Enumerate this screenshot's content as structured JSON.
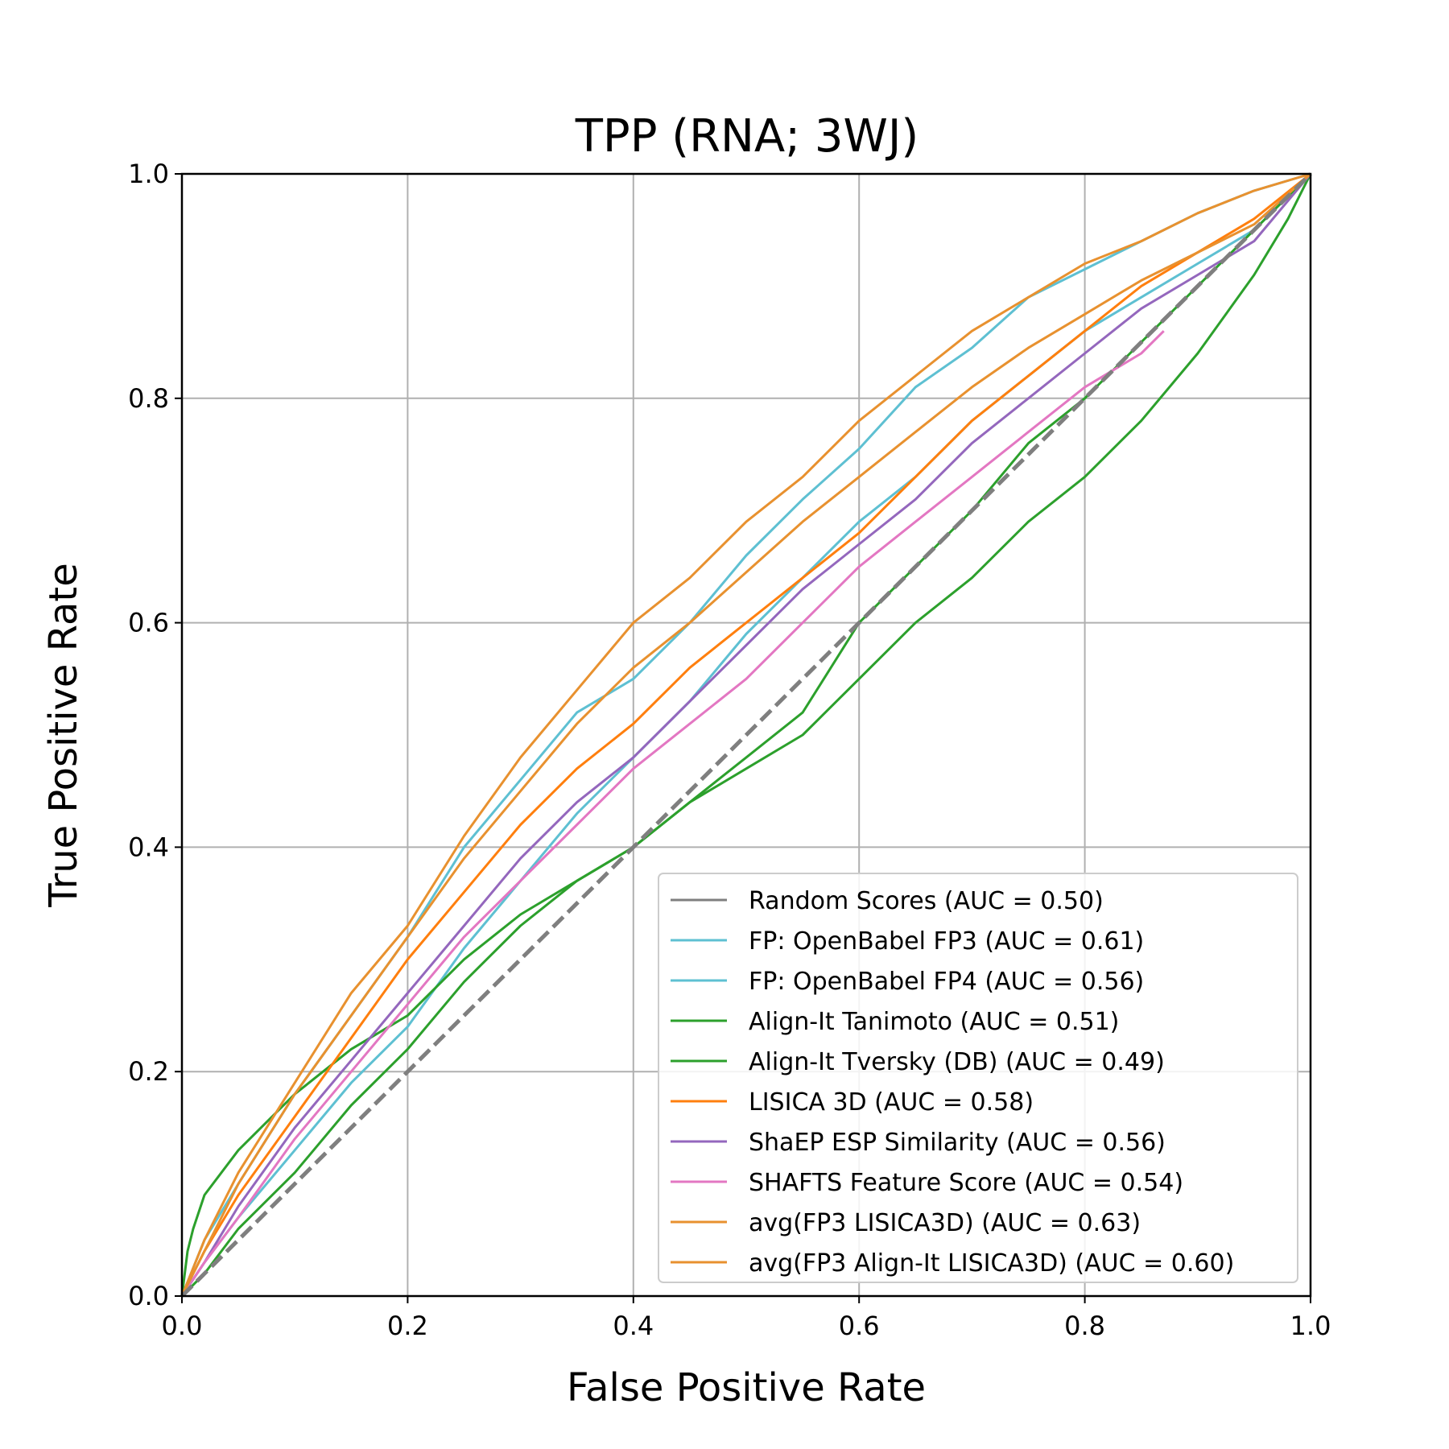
{
  "chart_data": {
    "type": "line",
    "title": "TPP (RNA; 3WJ)",
    "xlabel": "False Positive Rate",
    "ylabel": "True Positive Rate",
    "xlim": [
      0.0,
      1.0
    ],
    "ylim": [
      0.0,
      1.0
    ],
    "xticks": [
      "0.0",
      "0.2",
      "0.4",
      "0.6",
      "0.8",
      "1.0"
    ],
    "yticks": [
      "0.0",
      "0.2",
      "0.4",
      "0.6",
      "0.8",
      "1.0"
    ],
    "grid": true,
    "legend_position": "lower-right",
    "series": [
      {
        "name": "Random Scores (AUC = 0.50)",
        "color": "#7f7f7f",
        "dashed": true,
        "points": [
          [
            0,
            0
          ],
          [
            0.2,
            0.2
          ],
          [
            0.4,
            0.4
          ],
          [
            0.6,
            0.6
          ],
          [
            0.8,
            0.8
          ],
          [
            1,
            1
          ]
        ]
      },
      {
        "name": "FP: OpenBabel FP3 (AUC = 0.61)",
        "color": "#5ec0d2",
        "dashed": false,
        "points": [
          [
            0,
            0
          ],
          [
            0.02,
            0.05
          ],
          [
            0.05,
            0.1
          ],
          [
            0.1,
            0.18
          ],
          [
            0.15,
            0.25
          ],
          [
            0.2,
            0.32
          ],
          [
            0.25,
            0.4
          ],
          [
            0.3,
            0.46
          ],
          [
            0.35,
            0.52
          ],
          [
            0.4,
            0.55
          ],
          [
            0.45,
            0.6
          ],
          [
            0.5,
            0.66
          ],
          [
            0.55,
            0.71
          ],
          [
            0.6,
            0.755
          ],
          [
            0.65,
            0.81
          ],
          [
            0.7,
            0.845
          ],
          [
            0.75,
            0.89
          ],
          [
            0.8,
            0.915
          ],
          [
            0.85,
            0.94
          ],
          [
            0.9,
            0.965
          ],
          [
            0.95,
            0.985
          ],
          [
            1,
            1
          ]
        ]
      },
      {
        "name": "FP: OpenBabel FP4 (AUC = 0.56)",
        "color": "#5ec0d2",
        "dashed": false,
        "points": [
          [
            0,
            0
          ],
          [
            0.02,
            0.03
          ],
          [
            0.05,
            0.07
          ],
          [
            0.1,
            0.13
          ],
          [
            0.15,
            0.19
          ],
          [
            0.2,
            0.24
          ],
          [
            0.25,
            0.31
          ],
          [
            0.3,
            0.37
          ],
          [
            0.35,
            0.43
          ],
          [
            0.4,
            0.48
          ],
          [
            0.45,
            0.53
          ],
          [
            0.5,
            0.59
          ],
          [
            0.55,
            0.64
          ],
          [
            0.6,
            0.69
          ],
          [
            0.65,
            0.73
          ],
          [
            0.7,
            0.78
          ],
          [
            0.75,
            0.82
          ],
          [
            0.8,
            0.86
          ],
          [
            0.85,
            0.89
          ],
          [
            0.9,
            0.92
          ],
          [
            0.95,
            0.95
          ],
          [
            1,
            1
          ]
        ]
      },
      {
        "name": "Align-It Tanimoto (AUC = 0.51)",
        "color": "#2ca02c",
        "dashed": false,
        "points": [
          [
            0,
            0
          ],
          [
            0.005,
            0.04
          ],
          [
            0.01,
            0.06
          ],
          [
            0.02,
            0.09
          ],
          [
            0.05,
            0.13
          ],
          [
            0.1,
            0.18
          ],
          [
            0.15,
            0.22
          ],
          [
            0.2,
            0.25
          ],
          [
            0.25,
            0.3
          ],
          [
            0.3,
            0.34
          ],
          [
            0.35,
            0.37
          ],
          [
            0.4,
            0.4
          ],
          [
            0.45,
            0.44
          ],
          [
            0.5,
            0.48
          ],
          [
            0.55,
            0.52
          ],
          [
            0.6,
            0.6
          ],
          [
            0.65,
            0.65
          ],
          [
            0.7,
            0.7
          ],
          [
            0.75,
            0.76
          ],
          [
            0.8,
            0.8
          ],
          [
            0.85,
            0.85
          ],
          [
            0.9,
            0.9
          ],
          [
            0.95,
            0.95
          ],
          [
            1,
            1
          ]
        ]
      },
      {
        "name": "Align-It Tversky (DB) (AUC = 0.49)",
        "color": "#2ca02c",
        "dashed": false,
        "points": [
          [
            0,
            0
          ],
          [
            0.02,
            0.02
          ],
          [
            0.05,
            0.06
          ],
          [
            0.1,
            0.11
          ],
          [
            0.15,
            0.17
          ],
          [
            0.2,
            0.22
          ],
          [
            0.25,
            0.28
          ],
          [
            0.3,
            0.33
          ],
          [
            0.35,
            0.37
          ],
          [
            0.4,
            0.4
          ],
          [
            0.45,
            0.44
          ],
          [
            0.5,
            0.47
          ],
          [
            0.55,
            0.5
          ],
          [
            0.6,
            0.55
          ],
          [
            0.65,
            0.6
          ],
          [
            0.7,
            0.64
          ],
          [
            0.75,
            0.69
          ],
          [
            0.8,
            0.73
          ],
          [
            0.85,
            0.78
          ],
          [
            0.9,
            0.84
          ],
          [
            0.95,
            0.91
          ],
          [
            0.98,
            0.96
          ],
          [
            1,
            1
          ]
        ]
      },
      {
        "name": "LISICA 3D (AUC = 0.58)",
        "color": "#ff7f0e",
        "dashed": false,
        "points": [
          [
            0,
            0
          ],
          [
            0.02,
            0.04
          ],
          [
            0.05,
            0.09
          ],
          [
            0.1,
            0.16
          ],
          [
            0.15,
            0.23
          ],
          [
            0.2,
            0.3
          ],
          [
            0.25,
            0.36
          ],
          [
            0.3,
            0.42
          ],
          [
            0.35,
            0.47
          ],
          [
            0.4,
            0.51
          ],
          [
            0.45,
            0.56
          ],
          [
            0.5,
            0.6
          ],
          [
            0.55,
            0.64
          ],
          [
            0.6,
            0.68
          ],
          [
            0.65,
            0.73
          ],
          [
            0.7,
            0.78
          ],
          [
            0.75,
            0.82
          ],
          [
            0.8,
            0.86
          ],
          [
            0.85,
            0.9
          ],
          [
            0.9,
            0.93
          ],
          [
            0.95,
            0.96
          ],
          [
            1,
            1
          ]
        ]
      },
      {
        "name": "ShaEP ESP Similarity (AUC = 0.56)",
        "color": "#9467bd",
        "dashed": false,
        "points": [
          [
            0,
            0
          ],
          [
            0.02,
            0.03
          ],
          [
            0.05,
            0.08
          ],
          [
            0.1,
            0.15
          ],
          [
            0.15,
            0.21
          ],
          [
            0.2,
            0.27
          ],
          [
            0.25,
            0.33
          ],
          [
            0.3,
            0.39
          ],
          [
            0.35,
            0.44
          ],
          [
            0.4,
            0.48
          ],
          [
            0.45,
            0.53
          ],
          [
            0.5,
            0.58
          ],
          [
            0.55,
            0.63
          ],
          [
            0.6,
            0.67
          ],
          [
            0.65,
            0.71
          ],
          [
            0.7,
            0.76
          ],
          [
            0.75,
            0.8
          ],
          [
            0.8,
            0.84
          ],
          [
            0.85,
            0.88
          ],
          [
            0.9,
            0.91
          ],
          [
            0.95,
            0.94
          ],
          [
            1,
            1
          ]
        ]
      },
      {
        "name": "SHAFTS Feature Score (AUC = 0.54)",
        "color": "#e377c2",
        "dashed": false,
        "points": [
          [
            0,
            0
          ],
          [
            0.02,
            0.03
          ],
          [
            0.05,
            0.07
          ],
          [
            0.1,
            0.14
          ],
          [
            0.15,
            0.2
          ],
          [
            0.2,
            0.26
          ],
          [
            0.25,
            0.32
          ],
          [
            0.3,
            0.37
          ],
          [
            0.35,
            0.42
          ],
          [
            0.4,
            0.47
          ],
          [
            0.45,
            0.51
          ],
          [
            0.5,
            0.55
          ],
          [
            0.55,
            0.6
          ],
          [
            0.6,
            0.65
          ],
          [
            0.65,
            0.69
          ],
          [
            0.7,
            0.73
          ],
          [
            0.75,
            0.77
          ],
          [
            0.8,
            0.81
          ],
          [
            0.85,
            0.84
          ],
          [
            0.87,
            0.86
          ]
        ]
      },
      {
        "name": "avg(FP3 LISICA3D) (AUC = 0.63)",
        "color": "#e8912f",
        "dashed": false,
        "points": [
          [
            0,
            0
          ],
          [
            0.02,
            0.05
          ],
          [
            0.05,
            0.11
          ],
          [
            0.1,
            0.19
          ],
          [
            0.15,
            0.27
          ],
          [
            0.2,
            0.33
          ],
          [
            0.25,
            0.41
          ],
          [
            0.3,
            0.48
          ],
          [
            0.35,
            0.54
          ],
          [
            0.4,
            0.6
          ],
          [
            0.45,
            0.64
          ],
          [
            0.5,
            0.69
          ],
          [
            0.55,
            0.73
          ],
          [
            0.6,
            0.78
          ],
          [
            0.65,
            0.82
          ],
          [
            0.7,
            0.86
          ],
          [
            0.75,
            0.89
          ],
          [
            0.8,
            0.92
          ],
          [
            0.85,
            0.94
          ],
          [
            0.9,
            0.965
          ],
          [
            0.95,
            0.985
          ],
          [
            1,
            1
          ]
        ]
      },
      {
        "name": "avg(FP3 Align-It LISICA3D) (AUC = 0.60)",
        "color": "#e8912f",
        "dashed": false,
        "points": [
          [
            0,
            0
          ],
          [
            0.02,
            0.04
          ],
          [
            0.05,
            0.1
          ],
          [
            0.1,
            0.18
          ],
          [
            0.15,
            0.25
          ],
          [
            0.2,
            0.32
          ],
          [
            0.25,
            0.39
          ],
          [
            0.3,
            0.45
          ],
          [
            0.35,
            0.51
          ],
          [
            0.4,
            0.56
          ],
          [
            0.45,
            0.6
          ],
          [
            0.5,
            0.645
          ],
          [
            0.55,
            0.69
          ],
          [
            0.6,
            0.73
          ],
          [
            0.65,
            0.77
          ],
          [
            0.7,
            0.81
          ],
          [
            0.75,
            0.845
          ],
          [
            0.8,
            0.875
          ],
          [
            0.85,
            0.905
          ],
          [
            0.9,
            0.93
          ],
          [
            0.95,
            0.955
          ],
          [
            1,
            1
          ]
        ]
      }
    ]
  }
}
